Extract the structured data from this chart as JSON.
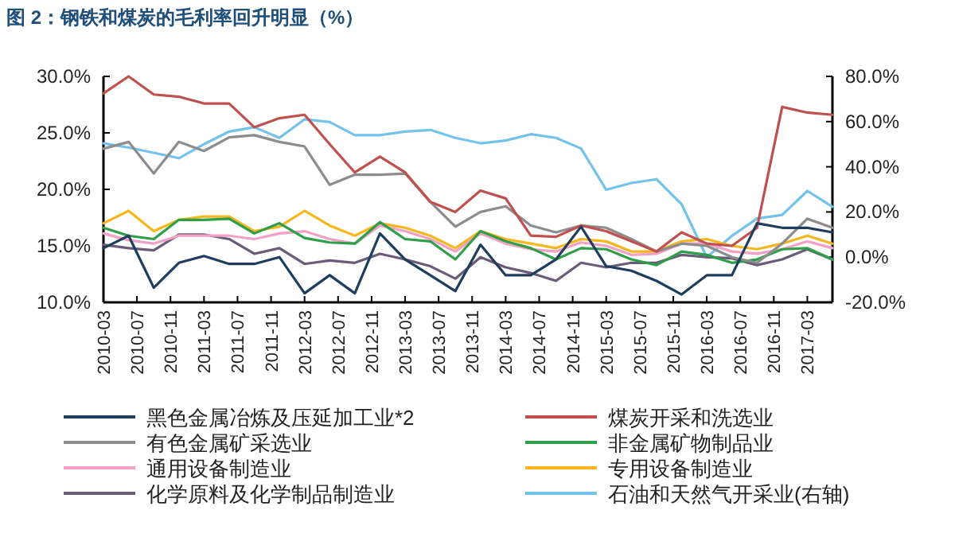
{
  "chart_data": {
    "type": "line",
    "title": "图 2：钢铁和煤炭的毛利率回升明显（%）",
    "x": [
      "2010-03",
      "2010-06",
      "2010-09",
      "2010-12",
      "2011-03",
      "2011-06",
      "2011-09",
      "2011-12",
      "2012-03",
      "2012-06",
      "2012-09",
      "2012-12",
      "2013-03",
      "2013-06",
      "2013-09",
      "2013-12",
      "2014-03",
      "2014-06",
      "2014-09",
      "2014-12",
      "2015-03",
      "2015-06",
      "2015-09",
      "2015-12",
      "2016-03",
      "2016-06",
      "2016-09",
      "2016-12",
      "2017-03",
      "2017-06"
    ],
    "xlim": [
      "2010-03",
      "2017-06"
    ],
    "xticks": [
      "2010-03",
      "2010-07",
      "2010-11",
      "2011-03",
      "2011-07",
      "2011-11",
      "2012-03",
      "2012-07",
      "2012-11",
      "2013-03",
      "2013-07",
      "2013-11",
      "2014-03",
      "2014-07",
      "2014-11",
      "2015-03",
      "2015-07",
      "2015-11",
      "2016-03",
      "2016-07",
      "2016-11",
      "2017-03"
    ],
    "ylim": [
      10,
      30
    ],
    "yticks": [
      {
        "value": 10,
        "label": "10.0%"
      },
      {
        "value": 15,
        "label": "15.0%"
      },
      {
        "value": 20,
        "label": "20.0%"
      },
      {
        "value": 25,
        "label": "25.0%"
      },
      {
        "value": 30,
        "label": "30.0%"
      }
    ],
    "y2lim": [
      -20,
      80
    ],
    "y2ticks": [
      {
        "value": -20,
        "label": "-20.0%"
      },
      {
        "value": 0,
        "label": "0.0%"
      },
      {
        "value": 20,
        "label": "20.0%"
      },
      {
        "value": 40,
        "label": "40.0%"
      },
      {
        "value": 60,
        "label": "60.0%"
      },
      {
        "value": 80,
        "label": "80.0%"
      }
    ],
    "legend": "bottom",
    "grid": false,
    "marker": "none",
    "line_style": "solid",
    "series": [
      {
        "name": "黑色金属冶炼及压延加工业*2",
        "color": "#1f3d5c",
        "values": [
          14.8,
          15.9,
          11.3,
          13.5,
          14.1,
          13.4,
          13.4,
          14.0,
          10.8,
          12.4,
          10.8,
          16.1,
          13.8,
          12.4,
          11.0,
          15.1,
          12.4,
          12.4,
          13.8,
          16.7,
          13.2,
          12.8,
          11.9,
          10.7,
          12.4,
          12.4,
          17.0,
          16.6,
          16.6,
          16.2
        ]
      },
      {
        "name": "煤炭开采和洗选业",
        "color": "#c0504d",
        "values": [
          28.5,
          30.0,
          28.4,
          28.2,
          27.6,
          27.6,
          25.5,
          26.3,
          26.6,
          24.0,
          21.5,
          22.9,
          21.5,
          18.9,
          18.0,
          19.9,
          19.2,
          15.9,
          15.8,
          16.8,
          16.3,
          15.4,
          14.5,
          16.2,
          15.2,
          15.0,
          16.6,
          27.3,
          26.8,
          26.6
        ]
      },
      {
        "name": "有色金属矿采选业",
        "color": "#8c8c8c",
        "values": [
          23.6,
          24.2,
          21.4,
          24.2,
          23.4,
          24.6,
          24.8,
          24.2,
          23.8,
          20.4,
          21.3,
          21.3,
          21.4,
          18.9,
          16.7,
          18.0,
          18.5,
          16.8,
          16.2,
          16.8,
          16.6,
          15.6,
          14.5,
          15.2,
          15.0,
          14.0,
          13.5,
          15.2,
          17.4,
          16.6
        ]
      },
      {
        "name": "非金属矿物制品业",
        "color": "#2e9e48",
        "values": [
          16.6,
          15.9,
          15.6,
          17.3,
          17.3,
          17.4,
          16.1,
          17.0,
          15.7,
          15.3,
          15.2,
          17.1,
          15.6,
          15.4,
          13.8,
          16.3,
          15.4,
          14.8,
          13.8,
          14.8,
          14.7,
          13.8,
          13.3,
          14.5,
          14.2,
          13.5,
          13.8,
          14.7,
          14.8,
          13.8
        ]
      },
      {
        "name": "通用设备制造业",
        "color": "#f2a0c4",
        "values": [
          16.1,
          15.5,
          15.2,
          15.9,
          15.9,
          15.9,
          15.6,
          16.1,
          16.3,
          15.6,
          15.2,
          16.8,
          16.3,
          15.6,
          14.5,
          16.1,
          15.2,
          14.7,
          14.5,
          15.3,
          15.0,
          14.2,
          14.3,
          15.2,
          15.2,
          14.5,
          14.3,
          14.7,
          15.4,
          14.8
        ]
      },
      {
        "name": "专用设备制造业",
        "color": "#f5b61e",
        "values": [
          17.0,
          18.1,
          16.3,
          17.3,
          17.6,
          17.6,
          16.3,
          16.7,
          18.1,
          16.8,
          15.9,
          17.0,
          16.6,
          15.9,
          14.8,
          16.3,
          15.6,
          15.2,
          14.8,
          15.6,
          15.4,
          14.5,
          14.5,
          15.4,
          15.6,
          15.0,
          14.7,
          15.2,
          15.9,
          15.2
        ]
      },
      {
        "name": "化学原料及化学制品制造业",
        "color": "#6a5b78",
        "values": [
          15.1,
          14.8,
          14.6,
          16.0,
          16.0,
          15.6,
          14.3,
          14.8,
          13.4,
          13.7,
          13.5,
          14.3,
          13.8,
          13.2,
          12.1,
          14.0,
          13.1,
          12.6,
          11.9,
          13.5,
          13.1,
          13.5,
          13.5,
          14.2,
          14.0,
          13.9,
          13.3,
          13.8,
          14.7,
          13.8
        ]
      },
      {
        "name": "石油和天然气开采业(右轴)",
        "color": "#74c2ea",
        "axis": "y2",
        "values": [
          50.4,
          48.5,
          46.2,
          43.8,
          50.0,
          55.6,
          57.5,
          52.8,
          61.0,
          59.8,
          54.0,
          54.0,
          55.6,
          56.3,
          52.8,
          50.4,
          51.6,
          54.4,
          52.8,
          48.1,
          29.8,
          32.8,
          34.5,
          23.4,
          0.0,
          9.4,
          17.1,
          18.7,
          29.3,
          22.3
        ]
      }
    ]
  }
}
